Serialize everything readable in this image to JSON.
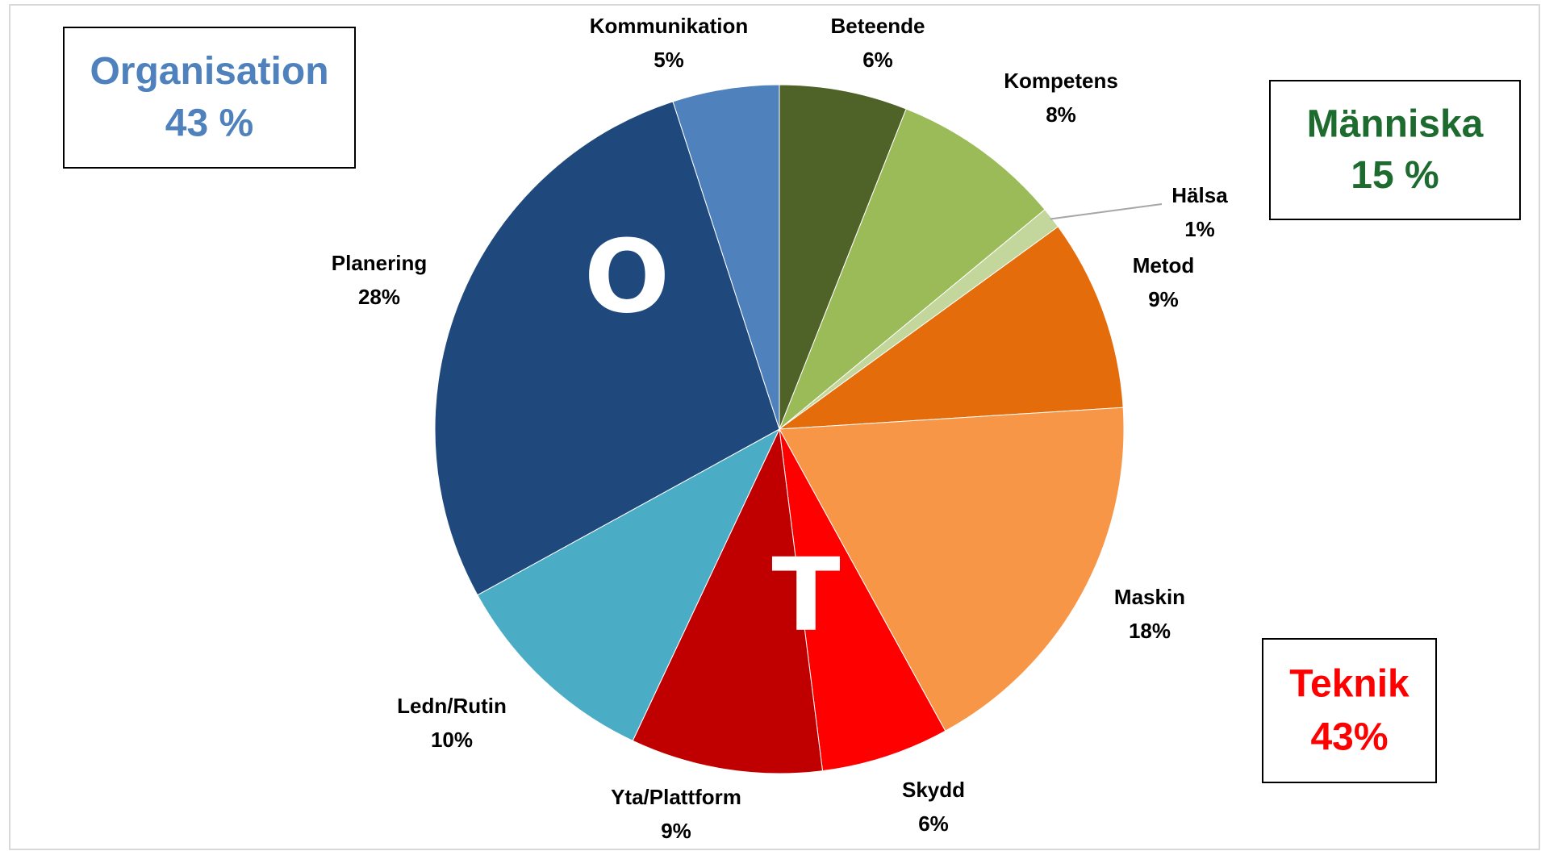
{
  "chart_data": {
    "type": "pie",
    "categories": [
      "Beteende",
      "Kompetens",
      "Hälsa",
      "Metod",
      "Maskin",
      "Skydd",
      "Yta/Plattform",
      "Ledn/Rutin",
      "Planering",
      "Kommunikation"
    ],
    "values": [
      6,
      8,
      1,
      9,
      18,
      6,
      9,
      10,
      28,
      5
    ],
    "value_labels": [
      "6%",
      "8%",
      "1%",
      "9%",
      "18%",
      "6%",
      "9%",
      "10%",
      "28%",
      "5%"
    ],
    "colors": [
      "#4f6228",
      "#9bbb59",
      "#c3d69b",
      "#e46c0a",
      "#f79646",
      "#ff0000",
      "#c00000",
      "#4bacc6",
      "#1f497d",
      "#4f81bd"
    ],
    "groups": [
      {
        "name": "Organisation",
        "share": "43 %",
        "color": "#4f81bd"
      },
      {
        "name": "Människa",
        "share": "15 %",
        "color": "#1e6b30"
      },
      {
        "name": "Teknik",
        "share": "43%",
        "color": "#ff0000"
      }
    ],
    "letters": [
      "O",
      "T"
    ]
  }
}
